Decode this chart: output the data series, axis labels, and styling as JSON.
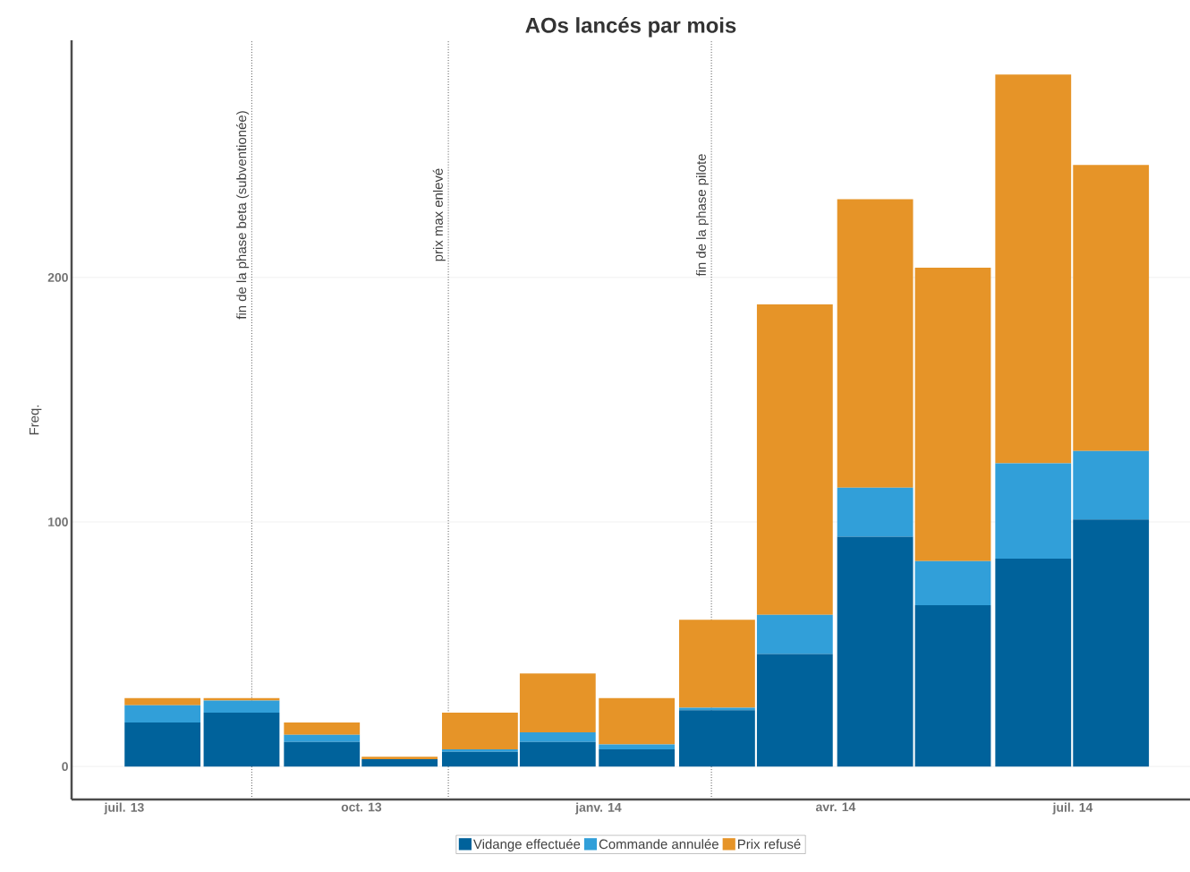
{
  "chart_data": {
    "type": "bar",
    "stacked": true,
    "title": "AOs lancés par mois",
    "ylabel": "Freq.",
    "x": [
      "2013-07-16",
      "2013-08-16",
      "2013-09-16",
      "2013-10-16",
      "2013-11-16",
      "2013-12-16",
      "2014-01-16",
      "2014-02-15",
      "2014-03-16",
      "2014-04-16",
      "2014-05-16",
      "2014-06-16",
      "2014-07-16"
    ],
    "series": [
      {
        "name": "Vidange effectuée",
        "color": "#00629b",
        "values": [
          18,
          22,
          10,
          3,
          6,
          10,
          7,
          23,
          46,
          94,
          66,
          85,
          101
        ]
      },
      {
        "name": "Commande annulée",
        "color": "#319fd9",
        "values": [
          7,
          5,
          3,
          0,
          1,
          4,
          2,
          1,
          16,
          20,
          18,
          39,
          28
        ]
      },
      {
        "name": "Prix refusé",
        "color": "#e69428",
        "values": [
          3,
          1,
          5,
          1,
          15,
          24,
          19,
          36,
          127,
          118,
          120,
          159,
          117
        ]
      }
    ],
    "xlim": [
      "2013-06-11",
      "2014-08-16"
    ],
    "xticks": [
      {
        "value": "2013-07",
        "label": "juil. 13"
      },
      {
        "value": "2013-10",
        "label": "oct. 13"
      },
      {
        "value": "2014-01",
        "label": "janv. 14"
      },
      {
        "value": "2014-04",
        "label": "avr. 14"
      },
      {
        "value": "2014-07",
        "label": "juil. 14"
      }
    ],
    "ylim": [
      -13.5,
      297
    ],
    "yticks": [
      0,
      100,
      200
    ],
    "grid": "y",
    "legend": "bottom",
    "ref_lines": [
      {
        "axis": "x",
        "value": "2013-08-20",
        "label": "fin de la phase beta (subventionée)",
        "line_style": "dotted",
        "color": "#555555"
      },
      {
        "axis": "x",
        "value": "2013-11-04",
        "label": "prix max enlevé",
        "line_style": "dotted",
        "color": "#555555"
      },
      {
        "axis": "x",
        "value": "2014-02-13",
        "label": "fin de la phase pilote",
        "line_style": "dotted",
        "color": "#555555"
      }
    ]
  }
}
